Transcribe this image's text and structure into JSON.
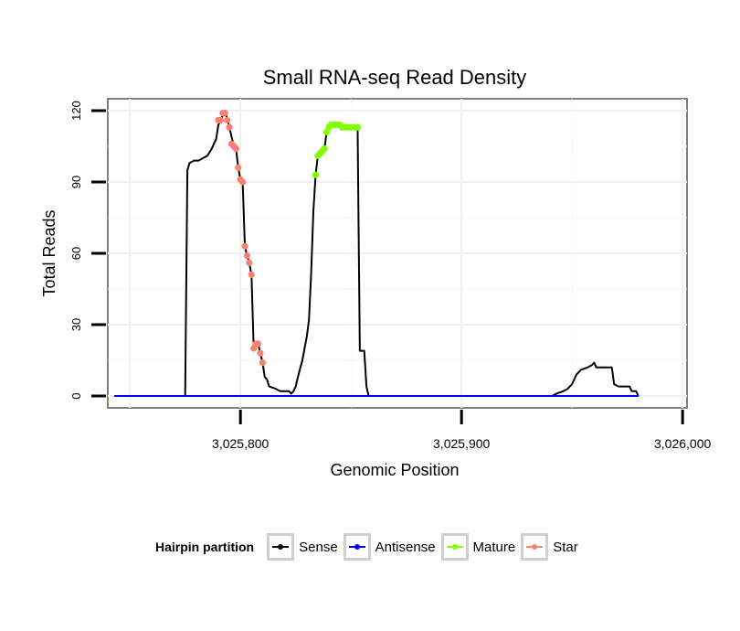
{
  "chart_data": {
    "type": "line",
    "title": "Small RNA-seq Read Density",
    "xlabel": "Genomic Position",
    "ylabel": "Total Reads",
    "xlim": [
      3025740,
      3026002
    ],
    "ylim": [
      -5,
      125
    ],
    "xticks": [
      3025800,
      3025900,
      3026000
    ],
    "xtick_labels": [
      "3,025,800",
      "3,025,900",
      "3,026,000"
    ],
    "yticks": [
      0,
      30,
      60,
      90,
      120
    ],
    "ytick_labels": [
      "0",
      "30",
      "60",
      "90",
      "120"
    ],
    "grid": true,
    "legend": {
      "title": "Hairpin partition",
      "position": "bottom",
      "entries": [
        {
          "label": "Sense",
          "color": "#000000"
        },
        {
          "label": "Antisense",
          "color": "#0000ff"
        },
        {
          "label": "Mature",
          "color": "#7fff00"
        },
        {
          "label": "Star",
          "color": "#fa8072"
        }
      ]
    },
    "series": [
      {
        "name": "Sense",
        "color": "#000000",
        "points": [
          [
            3025743,
            0
          ],
          [
            3025775,
            0
          ],
          [
            3025776,
            95
          ],
          [
            3025777,
            98
          ],
          [
            3025779,
            99
          ],
          [
            3025781,
            99
          ],
          [
            3025783,
            100
          ],
          [
            3025785,
            101
          ],
          [
            3025787,
            104
          ],
          [
            3025789,
            108
          ],
          [
            3025790,
            114
          ],
          [
            3025791,
            116
          ],
          [
            3025792,
            118
          ],
          [
            3025793,
            119
          ],
          [
            3025794,
            117
          ],
          [
            3025795,
            113
          ],
          [
            3025797,
            105
          ],
          [
            3025798,
            104
          ],
          [
            3025799,
            96
          ],
          [
            3025800,
            91
          ],
          [
            3025801,
            90
          ],
          [
            3025802,
            63
          ],
          [
            3025803,
            59
          ],
          [
            3025804,
            56
          ],
          [
            3025805,
            51
          ],
          [
            3025806,
            20
          ],
          [
            3025807,
            21
          ],
          [
            3025808,
            22
          ],
          [
            3025809,
            18
          ],
          [
            3025810,
            14
          ],
          [
            3025811,
            8
          ],
          [
            3025812,
            7
          ],
          [
            3025813,
            4
          ],
          [
            3025816,
            3
          ],
          [
            3025818,
            2
          ],
          [
            3025822,
            2
          ],
          [
            3025823,
            1
          ],
          [
            3025824,
            2
          ],
          [
            3025825,
            4
          ],
          [
            3025826,
            8
          ],
          [
            3025828,
            15
          ],
          [
            3025830,
            25
          ],
          [
            3025831,
            32
          ],
          [
            3025832,
            52
          ],
          [
            3025833,
            78
          ],
          [
            3025834,
            93
          ],
          [
            3025835,
            101
          ],
          [
            3025836,
            102
          ],
          [
            3025837,
            103
          ],
          [
            3025838,
            104
          ],
          [
            3025839,
            111
          ],
          [
            3025840,
            113
          ],
          [
            3025841,
            114
          ],
          [
            3025845,
            114
          ],
          [
            3025846,
            113
          ],
          [
            3025852,
            113
          ],
          [
            3025853,
            113
          ],
          [
            3025854,
            19
          ],
          [
            3025856,
            19
          ],
          [
            3025857,
            4
          ],
          [
            3025858,
            0
          ],
          [
            3025941,
            0
          ],
          [
            3025943,
            1
          ],
          [
            3025946,
            2
          ],
          [
            3025948,
            3
          ],
          [
            3025950,
            5
          ],
          [
            3025952,
            9
          ],
          [
            3025954,
            11
          ],
          [
            3025957,
            12
          ],
          [
            3025959,
            13
          ],
          [
            3025960,
            14
          ],
          [
            3025961,
            12
          ],
          [
            3025968,
            12
          ],
          [
            3025969,
            5
          ],
          [
            3025971,
            4
          ],
          [
            3025976,
            4
          ],
          [
            3025977,
            2
          ],
          [
            3025979,
            2
          ],
          [
            3025980,
            0
          ]
        ]
      },
      {
        "name": "Antisense",
        "color": "#0000ff",
        "points": [
          [
            3025743,
            0
          ],
          [
            3025980,
            0
          ]
        ]
      },
      {
        "name": "Mature",
        "color": "#7fff00",
        "points": [
          [
            3025834,
            93
          ],
          [
            3025835,
            101
          ],
          [
            3025836,
            102
          ],
          [
            3025837,
            103
          ],
          [
            3025838,
            104
          ],
          [
            3025839,
            111
          ],
          [
            3025840,
            113
          ],
          [
            3025841,
            114
          ],
          [
            3025842,
            114
          ],
          [
            3025843,
            114
          ],
          [
            3025844,
            114
          ],
          [
            3025845,
            114
          ],
          [
            3025846,
            113
          ],
          [
            3025847,
            113
          ],
          [
            3025848,
            113
          ],
          [
            3025849,
            113
          ],
          [
            3025850,
            113
          ],
          [
            3025851,
            113
          ],
          [
            3025852,
            113
          ],
          [
            3025853,
            113
          ]
        ]
      },
      {
        "name": "Star",
        "color": "#fa8072",
        "points": [
          [
            3025790,
            116
          ],
          [
            3025791,
            116
          ],
          [
            3025792,
            119
          ],
          [
            3025793,
            119
          ],
          [
            3025794,
            116
          ],
          [
            3025795,
            113
          ],
          [
            3025796,
            106
          ],
          [
            3025797,
            105
          ],
          [
            3025798,
            104
          ],
          [
            3025799,
            96
          ],
          [
            3025800,
            91
          ],
          [
            3025801,
            90
          ],
          [
            3025802,
            63
          ],
          [
            3025803,
            59
          ],
          [
            3025804,
            56
          ],
          [
            3025805,
            51
          ],
          [
            3025806,
            20
          ],
          [
            3025807,
            22
          ],
          [
            3025808,
            22
          ],
          [
            3025809,
            18
          ],
          [
            3025810,
            14
          ]
        ]
      }
    ]
  }
}
